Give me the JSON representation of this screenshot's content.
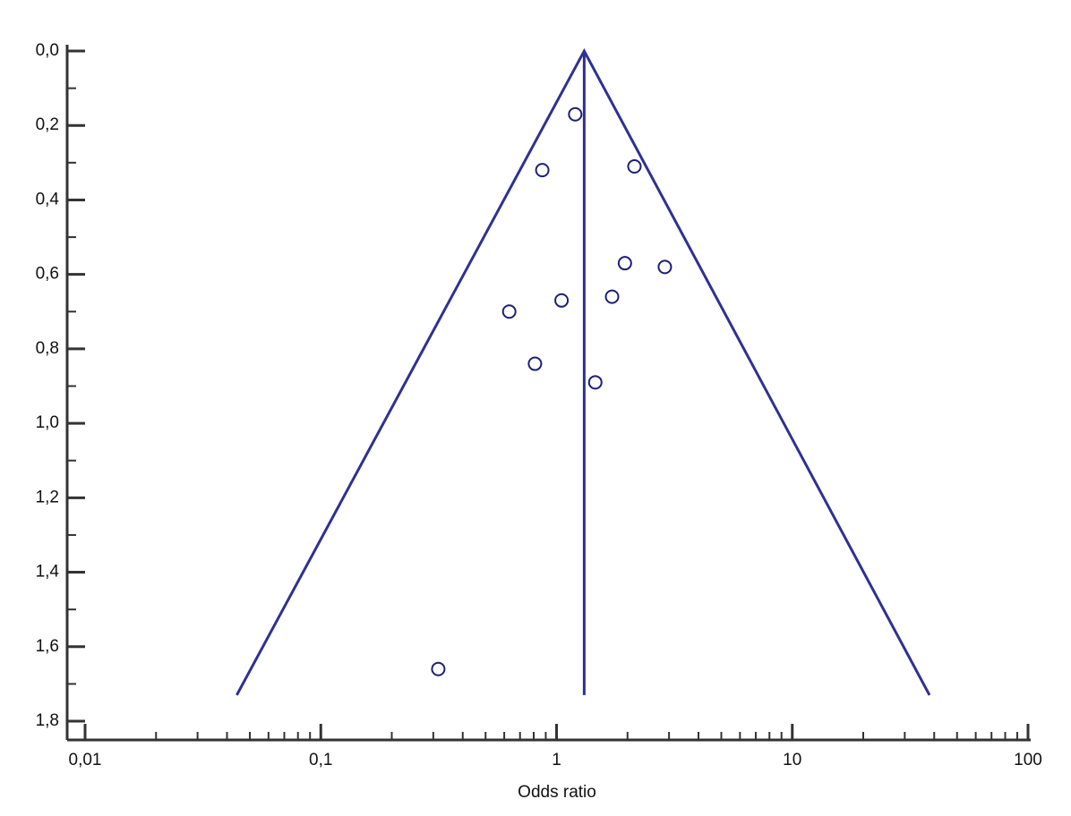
{
  "chart_data": {
    "type": "scatter",
    "x_label": "Odds ratio",
    "xscale": "log",
    "xlim": [
      0.01,
      100
    ],
    "xticks": [
      {
        "value": 0.01,
        "label": "0,01"
      },
      {
        "value": 0.1,
        "label": "0,1"
      },
      1,
      10,
      100
    ],
    "xminorticks": [
      0.02,
      0.03,
      0.04,
      0.05,
      0.06,
      0.07,
      0.08,
      0.09,
      0.2,
      0.3,
      0.4,
      0.5,
      0.6,
      0.7,
      0.8,
      0.9,
      2,
      3,
      4,
      5,
      6,
      7,
      8,
      9,
      20,
      30,
      40,
      50,
      60,
      70,
      80,
      90
    ],
    "ylim": [
      0,
      1.8
    ],
    "y_inverted": true,
    "yticks": [
      {
        "value": 0,
        "label": "0,0"
      },
      {
        "value": 0.2,
        "label": "0,2"
      },
      {
        "value": 0.4,
        "label": "0,4"
      },
      {
        "value": 0.6,
        "label": "0,6"
      },
      {
        "value": 0.8,
        "label": "0,8"
      },
      {
        "value": 1.0,
        "label": "1,0"
      },
      {
        "value": 1.2,
        "label": "1,2"
      },
      {
        "value": 1.4,
        "label": "1,4"
      },
      {
        "value": 1.6,
        "label": "1,6"
      },
      {
        "value": 1.8,
        "label": "1,8"
      }
    ],
    "yminorticks": [
      0.1,
      0.3,
      0.5,
      0.7,
      0.9,
      1.1,
      1.3,
      1.5,
      1.7
    ],
    "series": [
      {
        "color": "#1c1f78",
        "x": [
          1.2,
          0.87,
          2.14,
          1.95,
          2.88,
          1.72,
          1.05,
          0.63,
          0.81,
          1.46,
          0.315
        ],
        "values": [
          0.17,
          0.32,
          0.31,
          0.57,
          0.58,
          0.66,
          0.67,
          0.7,
          0.84,
          0.89,
          1.66
        ]
      }
    ],
    "lines": [
      {
        "color": "#2e3192",
        "x": [
          0.044,
          1.31,
          38.2
        ],
        "values": [
          1.73,
          0,
          1.73
        ]
      },
      {
        "color": "#2e3192",
        "x": [
          1.31,
          1.31
        ],
        "values": [
          0,
          1.73
        ]
      }
    ]
  }
}
